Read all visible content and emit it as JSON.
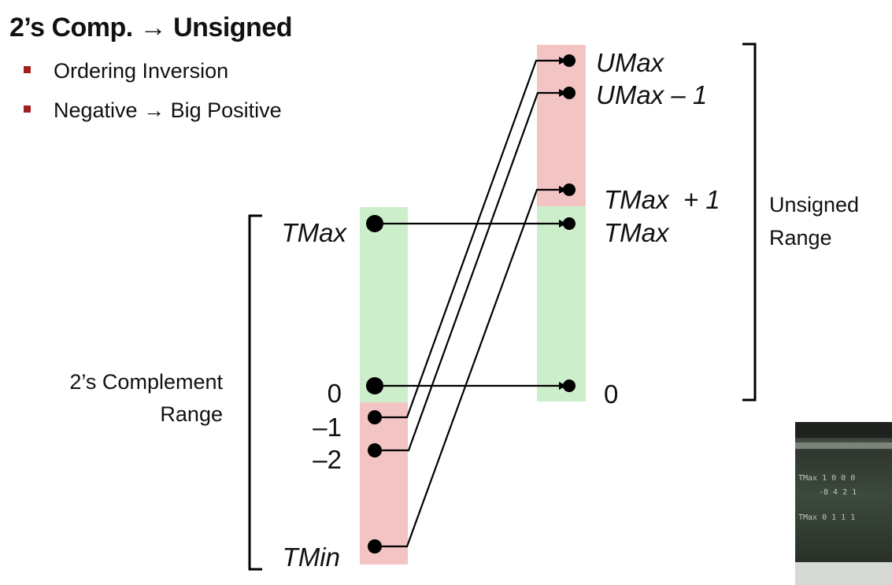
{
  "title": "2’s Comp. → Unsigned",
  "bullets": [
    "Ordering Inversion",
    "Negative → Big Positive"
  ],
  "colors": {
    "negative_region": "#f2c4c4",
    "nonnegative_region": "#cdeecb",
    "bullet_marker": "#a02020",
    "arrow": "#000000"
  },
  "twos_complement": {
    "range_label_line1": "2’s Complement",
    "range_label_line2": "Range",
    "labels": {
      "tmax": "TMax",
      "zero": "0",
      "minus_one": "–1",
      "minus_two": "–2",
      "tmin": "TMin"
    }
  },
  "unsigned": {
    "range_label_line1": "Unsigned",
    "range_label_line2": "Range",
    "labels": {
      "umax": "UMax",
      "umax_minus_one": "UMax – 1",
      "tmax_plus_one": "TMax  + 1",
      "tmax": "TMax",
      "zero": "0"
    }
  },
  "mappings": [
    {
      "from": "TMax",
      "to": "TMax"
    },
    {
      "from": "0",
      "to": "0"
    },
    {
      "from": "–1",
      "to": "UMax"
    },
    {
      "from": "–2",
      "to": "UMax – 1"
    },
    {
      "from": "TMin",
      "to": "TMax + 1"
    }
  ],
  "video_overlay": {
    "chalk_text_1": "TMax  1 0 0 0",
    "chalk_text_2": "-8  4 2 1",
    "chalk_text_3": "TMax  0 1 1 1"
  }
}
